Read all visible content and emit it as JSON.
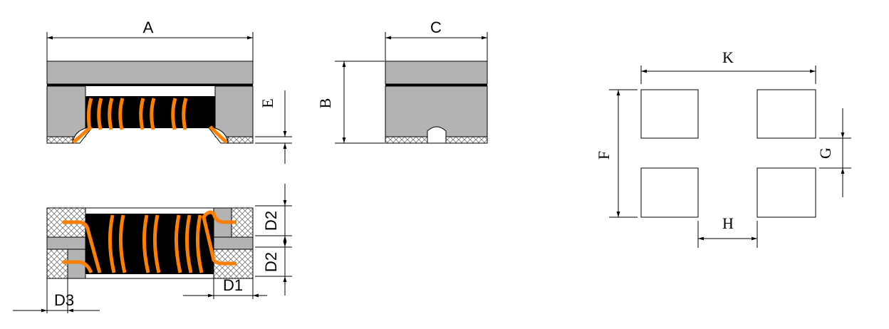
{
  "labels": {
    "A": "A",
    "B": "B",
    "C": "C",
    "E": "E",
    "D1": "D1",
    "D2_top": "D2",
    "D2_bottom": "D2",
    "D3": "D3",
    "F": "F",
    "G": "G",
    "H": "H",
    "K": "K"
  },
  "colors": {
    "body": "#b3b3b3",
    "core": "#000000",
    "wire": "#ff8000",
    "background": "#ffffff"
  }
}
